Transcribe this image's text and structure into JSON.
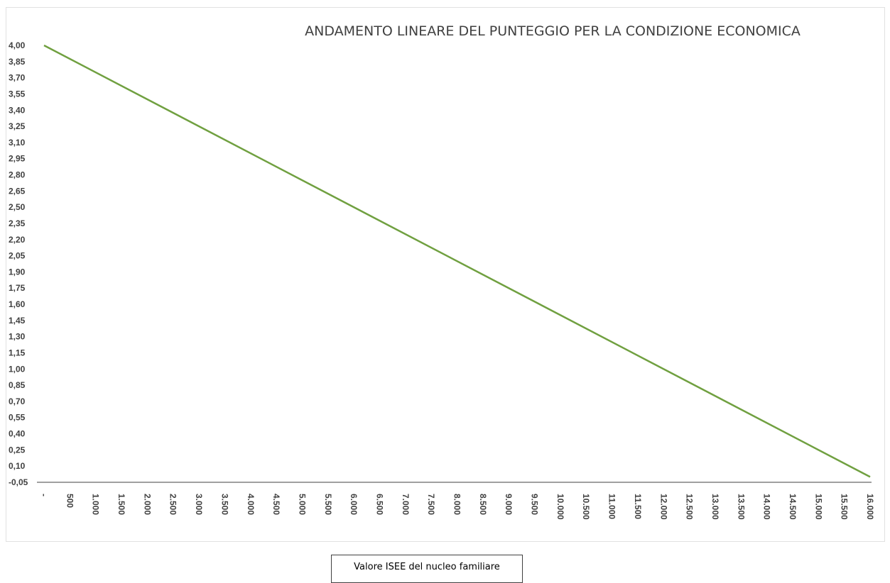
{
  "chart_data": {
    "type": "line",
    "title": "ANDAMENTO LINEARE DEL PUNTEGGIO PER LA CONDIZIONE ECONOMICA",
    "xlabel": "Valore  ISEE del nucleo familiare",
    "ylabel": "",
    "x": [
      0,
      16000
    ],
    "series": [
      {
        "values": [
          4.0,
          0.0
        ],
        "color": "#70a040"
      }
    ],
    "xlim": [
      0,
      16000
    ],
    "ylim": [
      -0.05,
      4.0
    ],
    "y_ticks": [
      "4,00",
      "3,85",
      "3,70",
      "3,55",
      "3,40",
      "3,25",
      "3,10",
      "2,95",
      "2,80",
      "2,65",
      "2,50",
      "2,35",
      "2,20",
      "2,05",
      "1,90",
      "1,75",
      "1,60",
      "1,45",
      "1,30",
      "1,15",
      "1,00",
      "0,85",
      "0,70",
      "0,55",
      "0,40",
      "0,25",
      "0,10",
      "-0,05"
    ],
    "x_ticks": [
      "-",
      "500",
      "1.000",
      "1.500",
      "2.000",
      "2.500",
      "3.000",
      "3.500",
      "4.000",
      "4.500",
      "5.000",
      "5.500",
      "6.000",
      "6.500",
      "7.000",
      "7.500",
      "8.000",
      "8.500",
      "9.000",
      "9.500",
      "10.000",
      "10.500",
      "11.000",
      "11.500",
      "12.000",
      "12.500",
      "13.000",
      "13.500",
      "14.000",
      "14.500",
      "15.000",
      "15.500",
      "16.000"
    ],
    "grid": false,
    "legend": "none",
    "colors": {
      "line": "#70a040",
      "axis": "#404040",
      "text": "#404040"
    }
  }
}
